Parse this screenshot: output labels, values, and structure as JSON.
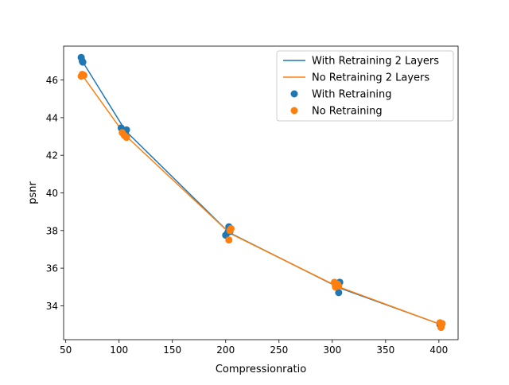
{
  "chart_data": {
    "type": "scatter",
    "xlabel": "Compressionratio",
    "ylabel": "psnr",
    "xlim": [
      48,
      418
    ],
    "ylim": [
      32.2,
      47.8
    ],
    "xticks": [
      50,
      100,
      150,
      200,
      250,
      300,
      350,
      400
    ],
    "yticks": [
      34,
      36,
      38,
      40,
      42,
      44,
      46
    ],
    "grid": false,
    "legend_position": "top-right",
    "series": [
      {
        "name": "With Retraining 2 Layers",
        "kind": "line",
        "color": "#1f77b4",
        "x": [
          65.5,
          106,
          203,
          307,
          402
        ],
        "y": [
          47.0,
          43.3,
          37.9,
          34.95,
          33.0
        ]
      },
      {
        "name": "No Retraining 2 Layers",
        "kind": "line",
        "color": "#ff7f0e",
        "x": [
          65.5,
          106,
          204,
          304,
          402
        ],
        "y": [
          46.25,
          43.05,
          37.85,
          35.05,
          33.0
        ]
      },
      {
        "name": "With Retraining",
        "kind": "scatter",
        "color": "#1f77b4",
        "x": [
          64.5,
          65.5,
          66.0,
          102,
          104,
          106,
          107,
          200,
          202,
          203,
          204,
          303,
          305,
          306,
          307,
          401,
          402,
          403
        ],
        "y": [
          47.2,
          47.0,
          46.95,
          43.45,
          43.3,
          43.25,
          43.35,
          37.75,
          37.9,
          38.2,
          37.95,
          35.05,
          35.2,
          34.7,
          35.25,
          33.0,
          32.9,
          33.05
        ]
      },
      {
        "name": "No Retraining",
        "kind": "scatter",
        "color": "#ff7f0e",
        "x": [
          64.5,
          65.5,
          67.0,
          103,
          105,
          107,
          203,
          204,
          205,
          302,
          303,
          305,
          306,
          401,
          402,
          403
        ],
        "y": [
          46.2,
          46.3,
          46.25,
          43.2,
          43.05,
          42.95,
          37.5,
          38.0,
          38.1,
          35.25,
          35.0,
          35.15,
          35.05,
          33.1,
          32.85,
          33.05
        ]
      }
    ]
  }
}
